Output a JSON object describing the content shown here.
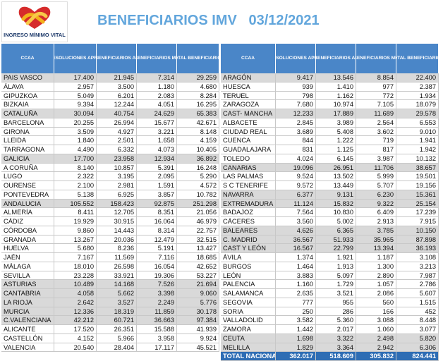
{
  "header": {
    "logo_text": "INGRESO MÍNIMO VITAL",
    "title": "BENEFICIARIOS IMV   03/12/2021"
  },
  "tables": [
    {
      "columns": [
        "CCAA",
        "TOTAL RESOLUCIONES APROBADAS",
        "TOTAL BENEFICIARIOS ADULTOS",
        "TOTAL BENEFICIARIOS MENORES",
        "TOTAL BENEFICIARIOS"
      ],
      "rows": [
        [
          "PAIS VASCO",
          "17.400",
          "21.945",
          "7.314",
          "29.259"
        ],
        [
          "ÁLAVA",
          "2.957",
          "3.500",
          "1.180",
          "4.680"
        ],
        [
          "GIPUZKOA",
          "5.049",
          "6.201",
          "2.083",
          "8.284"
        ],
        [
          "BIZKAIA",
          "9.394",
          "12.244",
          "4.051",
          "16.295"
        ],
        [
          "CATALUÑA",
          "30.094",
          "40.754",
          "24.629",
          "65.383"
        ],
        [
          "BARCELONA",
          "20.255",
          "26.994",
          "15.677",
          "42.671"
        ],
        [
          "GIRONA",
          "3.509",
          "4.927",
          "3.221",
          "8.148"
        ],
        [
          "LLEIDA",
          "1.840",
          "2.501",
          "1.658",
          "4.159"
        ],
        [
          "TARRAGONA",
          "4.490",
          "6.332",
          "4.073",
          "10.405"
        ],
        [
          "GALICIA",
          "17.700",
          "23.958",
          "12.934",
          "36.892"
        ],
        [
          "A CORUÑA",
          "8.140",
          "10.857",
          "5.391",
          "16.248"
        ],
        [
          "LUGO",
          "2.322",
          "3.195",
          "2.095",
          "5.290"
        ],
        [
          "OURENSE",
          "2.100",
          "2.981",
          "1.591",
          "4.572"
        ],
        [
          "PONTEVEDRA",
          "5.138",
          "6.925",
          "3.857",
          "10.782"
        ],
        [
          "ANDALUCIA",
          "105.552",
          "158.423",
          "92.875",
          "251.298"
        ],
        [
          "ALMERÍA",
          "8.411",
          "12.705",
          "8.351",
          "21.056"
        ],
        [
          "CÁDIZ",
          "19.929",
          "30.915",
          "16.064",
          "46.979"
        ],
        [
          "CÓRDOBA",
          "9.860",
          "14.443",
          "8.314",
          "22.757"
        ],
        [
          "GRANADA",
          "13.267",
          "20.036",
          "12.479",
          "32.515"
        ],
        [
          "HUELVA",
          "5.680",
          "8.236",
          "5.191",
          "13.427"
        ],
        [
          "JAÉN",
          "7.167",
          "11.569",
          "7.116",
          "18.685"
        ],
        [
          "MÁLAGA",
          "18.010",
          "26.598",
          "16.054",
          "42.652"
        ],
        [
          "SEVILLA",
          "23.228",
          "33.921",
          "19.306",
          "53.227"
        ],
        [
          "ASTURIAS",
          "10.489",
          "14.168",
          "7.526",
          "21.694"
        ],
        [
          "CANTABRIA",
          "4.058",
          "5.662",
          "3.398",
          "9.060"
        ],
        [
          "LA RIOJA",
          "2.642",
          "3.527",
          "2.249",
          "5.776"
        ],
        [
          "MURCIA",
          "12.336",
          "18.319",
          "11.859",
          "30.178"
        ],
        [
          "C.VALENCIANA",
          "42.212",
          "60.721",
          "36.663",
          "97.384"
        ],
        [
          "ALICANTE",
          "17.520",
          "26.351",
          "15.588",
          "41.939"
        ],
        [
          "CASTELLÓN",
          "4.152",
          "5.966",
          "3.958",
          "9.924"
        ],
        [
          "VALENCIA",
          "20.540",
          "28.404",
          "17.117",
          "45.521"
        ]
      ]
    },
    {
      "columns": [
        "CCAA",
        "TOTAL RESOLUCIONES APROBADAS",
        "TOTAL BENEFICIARIOS ADULTOS",
        "TOTAL BENEFICIARIOS MENORES",
        "TOTAL BENEFICIARIOS"
      ],
      "rows": [
        [
          "ARAGÓN",
          "9.417",
          "13.546",
          "8.854",
          "22.400"
        ],
        [
          "HUESCA",
          "939",
          "1.410",
          "977",
          "2.387"
        ],
        [
          "TERUEL",
          "798",
          "1.162",
          "772",
          "1.934"
        ],
        [
          "ZARAGOZA",
          "7.680",
          "10.974",
          "7.105",
          "18.079"
        ],
        [
          "CAST- MANCHA",
          "12.233",
          "17.889",
          "11.689",
          "29.578"
        ],
        [
          "ALBACETE",
          "2.845",
          "3.989",
          "2.564",
          "6.553"
        ],
        [
          "CIUDAD REAL",
          "3.689",
          "5.408",
          "3.602",
          "9.010"
        ],
        [
          "CUENCA",
          "844",
          "1.222",
          "719",
          "1.941"
        ],
        [
          "GUADALAJARA",
          "831",
          "1.125",
          "817",
          "1.942"
        ],
        [
          "TOLEDO",
          "4.024",
          "6.145",
          "3.987",
          "10.132"
        ],
        [
          "CANARIAS",
          "19.096",
          "26.951",
          "11.706",
          "38.657"
        ],
        [
          "LAS PALMAS",
          "9.524",
          "13.502",
          "5.999",
          "19.501"
        ],
        [
          "S C TENERIFE",
          "9.572",
          "13.449",
          "5.707",
          "19.156"
        ],
        [
          "NAVARRA",
          "6.377",
          "9.131",
          "6.230",
          "15.361"
        ],
        [
          "EXTREMADURA",
          "11.124",
          "15.832",
          "9.322",
          "25.154"
        ],
        [
          "BADAJOZ",
          "7.564",
          "10.830",
          "6.409",
          "17.239"
        ],
        [
          "CÁCERES",
          "3.560",
          "5.002",
          "2.913",
          "7.915"
        ],
        [
          "BALEARES",
          "4.626",
          "6.365",
          "3.785",
          "10.150"
        ],
        [
          "C. MADRID",
          "36.567",
          "51.933",
          "35.965",
          "87.898"
        ],
        [
          "CAST Y LEÓN",
          "16.567",
          "22.799",
          "13.394",
          "36.193"
        ],
        [
          "ÁVILA",
          "1.374",
          "1.921",
          "1.187",
          "3.108"
        ],
        [
          "BURGOS",
          "1.464",
          "1.913",
          "1.300",
          "3.213"
        ],
        [
          "LEÓN",
          "3.883",
          "5.097",
          "2.890",
          "7.987"
        ],
        [
          "PALENCIA",
          "1.160",
          "1.729",
          "1.057",
          "2.786"
        ],
        [
          "SALAMANCA",
          "2.635",
          "3.521",
          "2.086",
          "5.607"
        ],
        [
          "SEGOVIA",
          "777",
          "955",
          "560",
          "1.515"
        ],
        [
          "SORIA",
          "250",
          "286",
          "166",
          "452"
        ],
        [
          "VALLADOLID",
          "3.582",
          "5.360",
          "3.088",
          "8.448"
        ],
        [
          "ZAMORA",
          "1.442",
          "2.017",
          "1.060",
          "3.077"
        ],
        [
          "CEUTA",
          "1.698",
          "3.322",
          "2.498",
          "5.820"
        ],
        [
          "MELILLA",
          "1.829",
          "3.364",
          "2.942",
          "6.306"
        ]
      ],
      "total": [
        "TOTAL NACIONAL",
        "362.017",
        "518.609",
        "305.832",
        "824.441"
      ]
    }
  ]
}
